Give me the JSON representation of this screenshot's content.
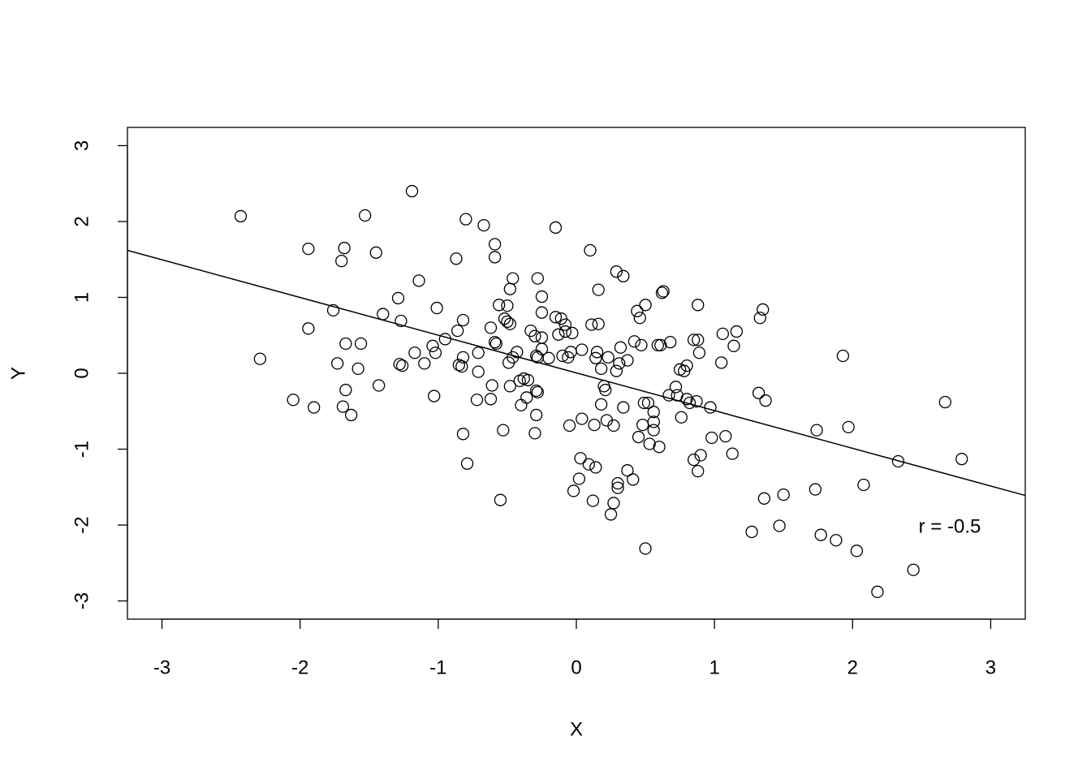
{
  "chart_data": {
    "type": "scatter",
    "x_label": "X",
    "y_label": "Y",
    "x": [
      -2.43,
      -2.29,
      -2.05,
      -1.9,
      -1.94,
      -1.94,
      -1.68,
      -1.7,
      -1.76,
      -1.73,
      -1.67,
      -1.67,
      -1.69,
      -1.63,
      -1.58,
      -1.56,
      -1.53,
      -1.45,
      -1.43,
      -1.4,
      -1.19,
      -1.29,
      -1.27,
      -1.28,
      -1.26,
      -1.17,
      -1.14,
      -1.1,
      -1.04,
      -1.02,
      -1.01,
      -1.03,
      -0.95,
      -0.87,
      -0.86,
      -0.85,
      -0.83,
      -0.82,
      -0.82,
      -0.8,
      -0.82,
      -0.79,
      -0.71,
      -0.71,
      -0.72,
      -0.67,
      -0.62,
      -0.62,
      -0.61,
      -0.59,
      -0.59,
      -0.59,
      -0.58,
      -0.56,
      -0.55,
      -0.53,
      -0.52,
      -0.5,
      -0.5,
      -0.48,
      -0.48,
      -0.46,
      -0.49,
      -0.48,
      -0.46,
      -0.43,
      -0.41,
      -0.4,
      -0.38,
      -0.36,
      -0.35,
      -0.33,
      -0.3,
      -0.29,
      -0.29,
      -0.29,
      -0.3,
      -0.28,
      -0.28,
      -0.28,
      -0.25,
      -0.25,
      -0.25,
      -0.25,
      -0.2,
      -0.15,
      -0.15,
      -0.13,
      -0.11,
      -0.1,
      -0.08,
      -0.08,
      -0.06,
      -0.04,
      -0.03,
      -0.05,
      -0.02,
      0.02,
      0.03,
      0.04,
      0.04,
      0.09,
      0.1,
      0.11,
      0.12,
      0.13,
      0.14,
      0.14,
      0.15,
      0.16,
      0.16,
      0.18,
      0.18,
      0.2,
      0.21,
      0.22,
      0.23,
      0.25,
      0.27,
      0.27,
      0.29,
      0.29,
      0.3,
      0.3,
      0.31,
      0.32,
      0.34,
      0.34,
      0.37,
      0.37,
      0.41,
      0.42,
      0.44,
      0.45,
      0.46,
      0.47,
      0.48,
      0.49,
      0.5,
      0.5,
      0.52,
      0.53,
      0.56,
      0.56,
      0.56,
      0.59,
      0.6,
      0.61,
      0.62,
      0.63,
      0.67,
      0.68,
      0.72,
      0.73,
      0.75,
      0.76,
      0.78,
      0.8,
      0.8,
      0.82,
      0.85,
      0.85,
      0.87,
      0.88,
      0.88,
      0.88,
      0.89,
      0.9,
      0.97,
      0.98,
      1.05,
      1.06,
      1.08,
      1.13,
      1.14,
      1.16,
      1.27,
      1.32,
      1.33,
      1.35,
      1.36,
      1.37,
      1.47,
      1.5,
      1.73,
      1.74,
      1.77,
      1.88,
      1.93,
      1.97,
      2.03,
      2.08,
      2.18,
      2.33,
      2.44,
      2.67,
      2.79
    ],
    "y": [
      2.07,
      0.19,
      -0.35,
      -0.45,
      1.64,
      0.59,
      1.65,
      1.48,
      0.83,
      0.13,
      0.39,
      -0.22,
      -0.44,
      -0.55,
      0.06,
      0.39,
      2.08,
      1.59,
      -0.16,
      0.78,
      2.4,
      0.99,
      0.69,
      0.12,
      0.1,
      0.27,
      1.22,
      0.13,
      0.36,
      0.27,
      0.86,
      -0.3,
      0.45,
      1.51,
      0.56,
      0.11,
      0.09,
      0.7,
      0.21,
      2.03,
      -0.8,
      -1.19,
      0.27,
      0.02,
      -0.35,
      1.95,
      -0.34,
      0.6,
      -0.16,
      1.7,
      1.53,
      0.41,
      0.39,
      0.9,
      -1.67,
      -0.75,
      0.72,
      0.89,
      0.68,
      0.65,
      1.11,
      1.25,
      0.14,
      -0.17,
      0.21,
      0.28,
      -0.1,
      -0.42,
      -0.07,
      -0.32,
      -0.09,
      0.56,
      0.49,
      0.23,
      -0.23,
      -0.55,
      -0.79,
      0.21,
      -0.25,
      1.25,
      1.01,
      0.8,
      0.47,
      0.32,
      0.2,
      1.92,
      0.74,
      0.51,
      0.72,
      0.23,
      0.64,
      0.55,
      0.21,
      0.28,
      0.53,
      -0.69,
      -1.55,
      -1.39,
      -1.12,
      -0.6,
      0.31,
      -1.2,
      1.62,
      0.64,
      -1.68,
      -0.68,
      -1.24,
      0.2,
      0.28,
      1.1,
      0.65,
      0.06,
      -0.41,
      -0.17,
      -0.22,
      -0.62,
      0.21,
      -1.86,
      -1.71,
      -0.69,
      1.34,
      0.03,
      -1.45,
      -1.51,
      0.13,
      0.34,
      1.28,
      -0.45,
      0.17,
      -1.28,
      -1.4,
      0.42,
      0.82,
      -0.84,
      0.73,
      0.37,
      -0.68,
      -0.39,
      0.9,
      -2.31,
      -0.39,
      -0.93,
      -0.64,
      -0.75,
      -0.51,
      0.37,
      -0.97,
      0.37,
      1.06,
      1.08,
      -0.29,
      0.41,
      -0.18,
      -0.29,
      0.05,
      -0.58,
      0.03,
      0.1,
      -0.34,
      -0.39,
      -1.14,
      0.44,
      -0.37,
      0.44,
      0.9,
      -1.29,
      0.27,
      -1.08,
      -0.45,
      -0.85,
      0.14,
      0.52,
      -0.83,
      -1.06,
      0.36,
      0.55,
      -2.09,
      -0.26,
      0.73,
      0.84,
      -1.65,
      -0.36,
      -2.01,
      -1.6,
      -1.53,
      -0.75,
      -2.13,
      -2.2,
      0.23,
      -0.71,
      -2.34,
      -1.47,
      -2.88,
      -1.16,
      -2.59,
      -0.38,
      -1.13
    ],
    "color": "#000000",
    "fit": {
      "slope": -0.497,
      "intercept": 0.005,
      "color": "#000000"
    },
    "annotation": {
      "text": "r = -0.5",
      "color": "#ff0000"
    },
    "xlim": [
      -3.25,
      3.25
    ],
    "ylim": [
      -3.24,
      3.24
    ],
    "xticks": [
      -3,
      -2,
      -1,
      0,
      1,
      2,
      3
    ],
    "yticks": [
      -3,
      -2,
      -1,
      0,
      1,
      2,
      3
    ]
  }
}
